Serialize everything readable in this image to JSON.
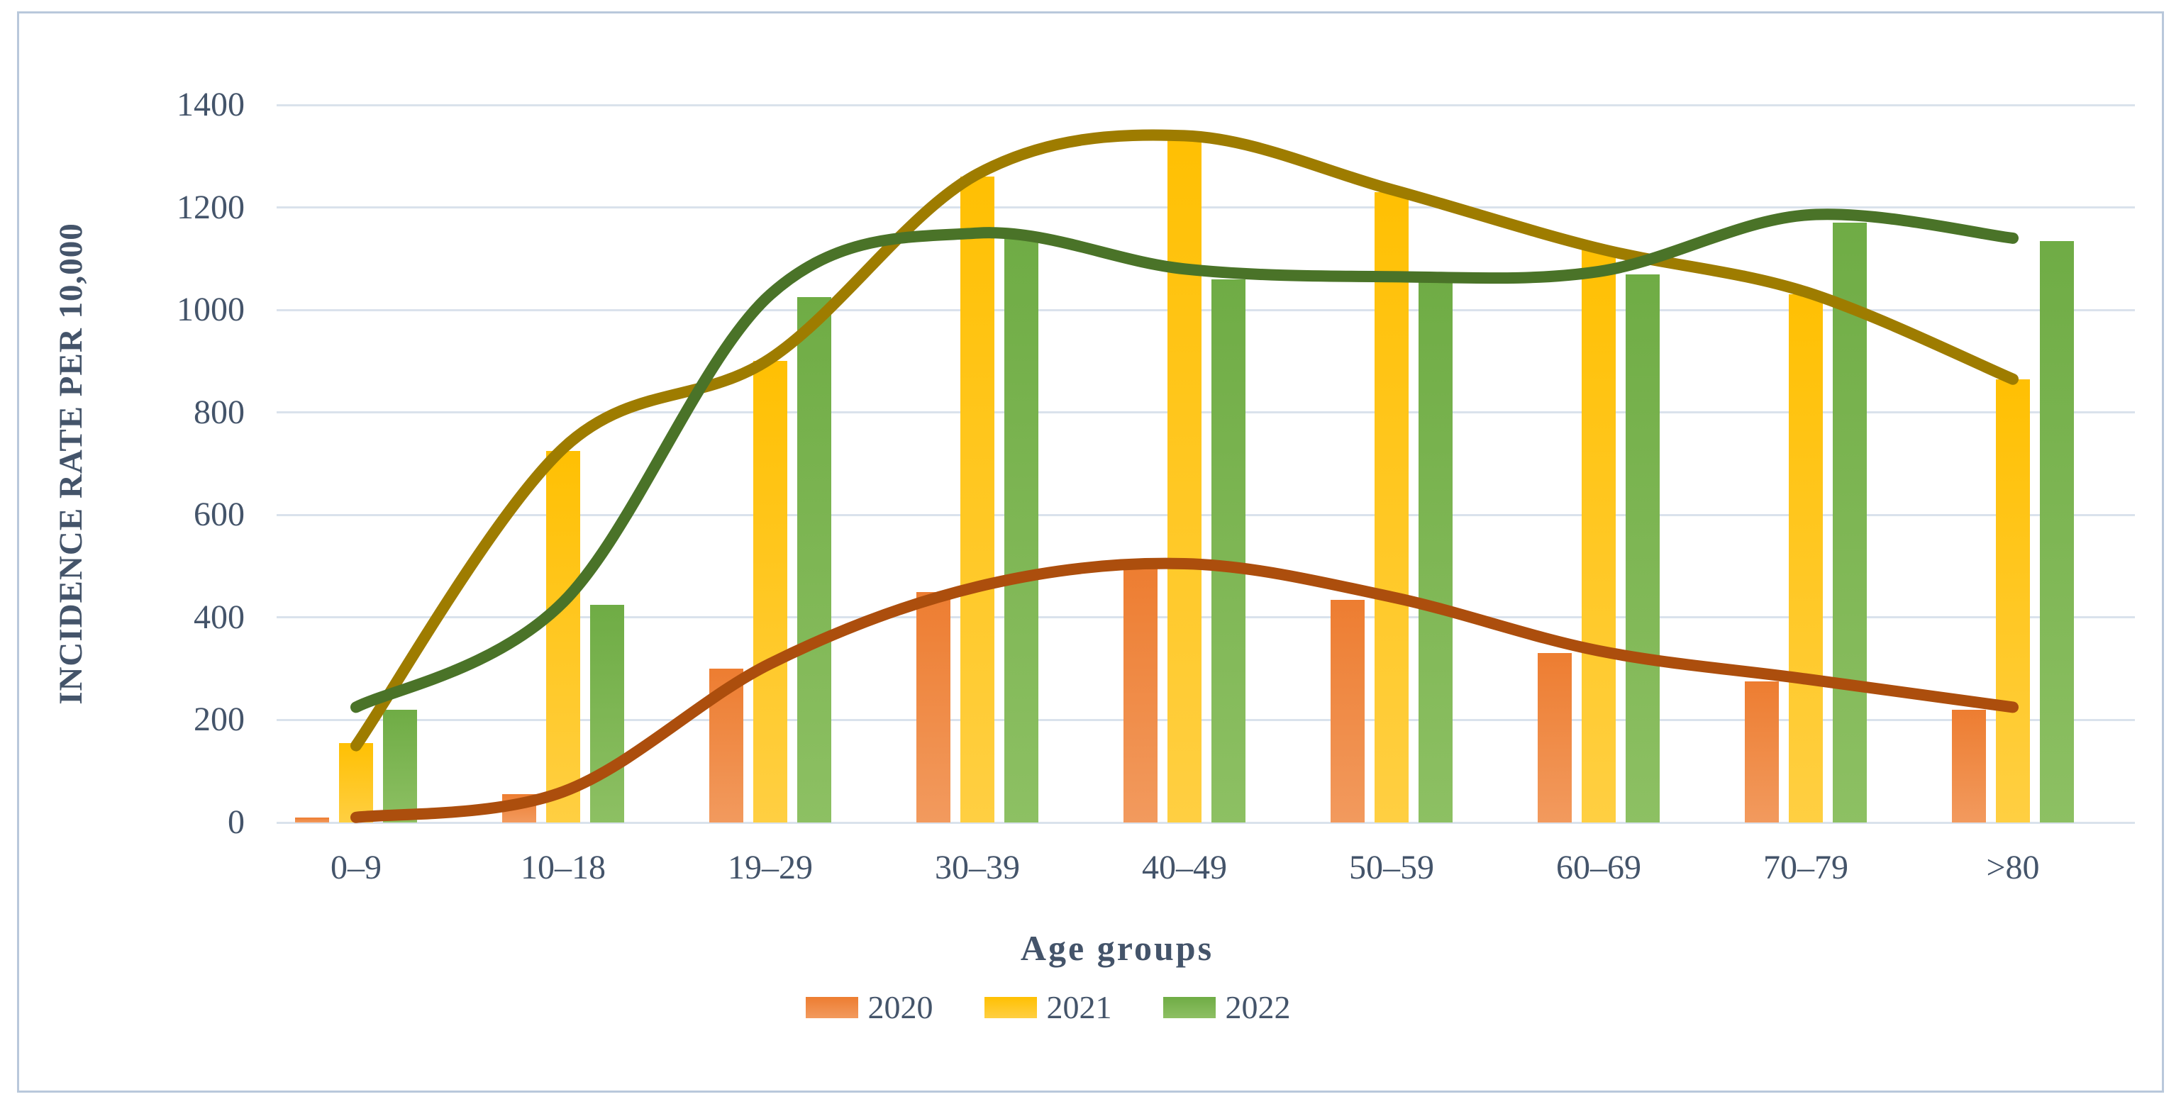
{
  "chart_data": {
    "type": "bar+line",
    "title": "",
    "xlabel": "Age groups",
    "ylabel": "INCIDENCE RATE PER 10,000",
    "categories": [
      "0–9",
      "10–18",
      "19–29",
      "30–39",
      "40–49",
      "50–59",
      "60–69",
      "70–79",
      ">80"
    ],
    "ylim": [
      0,
      1400
    ],
    "ytick_step": 200,
    "ytick_labels": [
      "0",
      "200",
      "400",
      "600",
      "800",
      "1000",
      "1200",
      "1400"
    ],
    "grid": "horizontal",
    "legend_position": "bottom",
    "series": [
      {
        "name": "2020",
        "bar_values": [
          10,
          55,
          300,
          450,
          500,
          435,
          330,
          275,
          220
        ],
        "line_values": [
          10,
          60,
          310,
          460,
          505,
          440,
          335,
          280,
          225
        ],
        "bar_color_top": "#ED7D31",
        "bar_color_bottom": "#F29A5E",
        "line_color": "#AC4E0D"
      },
      {
        "name": "2021",
        "bar_values": [
          155,
          725,
          900,
          1260,
          1335,
          1230,
          1120,
          1030,
          865
        ],
        "line_values": [
          150,
          730,
          905,
          1265,
          1340,
          1235,
          1120,
          1035,
          865
        ],
        "bar_color_top": "#FFC003",
        "bar_color_bottom": "#FFCF42",
        "line_color": "#9E7C00"
      },
      {
        "name": "2022",
        "bar_values": [
          220,
          425,
          1025,
          1145,
          1060,
          1060,
          1070,
          1170,
          1135
        ],
        "line_values": [
          225,
          430,
          1030,
          1150,
          1080,
          1065,
          1075,
          1185,
          1140
        ],
        "bar_color_top": "#6FAC45",
        "bar_color_bottom": "#8DC063",
        "line_color": "#4A7328"
      }
    ],
    "text_color": "#44546A",
    "gridline_color": "#dae2ec",
    "border_color": "#b9c8db"
  }
}
